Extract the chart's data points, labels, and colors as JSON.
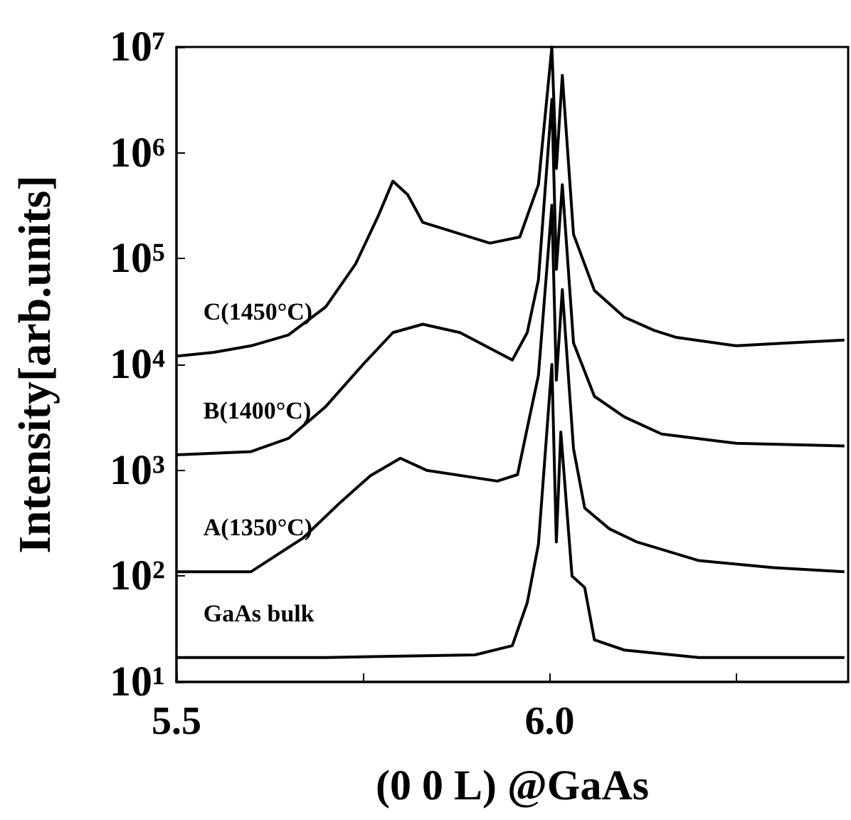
{
  "chart_data": {
    "type": "line",
    "xlabel": "(0 0 L) @GaAs",
    "ylabel": "Intensity[arb.units]",
    "xlim": [
      5.5,
      6.4
    ],
    "xticks": [
      {
        "value": 5.5,
        "label": "5.5"
      },
      {
        "value": 5.75,
        "label": null
      },
      {
        "value": 6,
        "label": "6.0"
      },
      {
        "value": 6.25,
        "label": null
      }
    ],
    "ylim": [
      10,
      10000000
    ],
    "yticks": [
      {
        "value": 10,
        "label": "10¹"
      },
      {
        "value": 100,
        "label": "10²"
      },
      {
        "value": 1000,
        "label": "10³"
      },
      {
        "value": 10000,
        "label": "10⁴"
      },
      {
        "value": 100000,
        "label": "10⁵"
      },
      {
        "value": 1000000,
        "label": "10⁶"
      },
      {
        "value": 10000000,
        "label": "10⁷"
      }
    ],
    "log": "y",
    "grid": false,
    "legend": false,
    "marker": "none",
    "line_style": "solid",
    "series": [
      {
        "name": "C(1450°C)",
        "color": "#000000",
        "x": [
          5.5,
          5.55,
          5.6,
          5.65,
          5.7,
          5.74,
          5.77,
          5.79,
          5.81,
          5.83,
          5.87,
          5.92,
          5.96,
          5.985,
          6.003,
          6.009,
          6.017,
          6.032,
          6.06,
          6.1,
          6.14,
          6.17,
          6.25,
          6.32,
          6.395
        ],
        "values": [
          12000,
          13000,
          15000,
          19000,
          35000,
          89000,
          250000,
          540000,
          400000,
          220000,
          180000,
          140000,
          160000,
          500000,
          10000000,
          710000,
          5400000,
          170000,
          50000,
          28000,
          21000,
          18000,
          15000,
          16000,
          17000
        ]
      },
      {
        "name": "B(1400°C)",
        "color": "#000000",
        "x": [
          5.5,
          5.6,
          5.65,
          5.7,
          5.75,
          5.79,
          5.83,
          5.88,
          5.95,
          5.97,
          5.985,
          6.003,
          6.009,
          6.017,
          6.032,
          6.06,
          6.1,
          6.15,
          6.25,
          6.395
        ],
        "values": [
          1400,
          1500,
          2000,
          4000,
          10000,
          20000,
          24000,
          20000,
          11000,
          20000,
          63000,
          3200000,
          79000,
          500000,
          16000,
          5000,
          3200,
          2200,
          1800,
          1700
        ]
      },
      {
        "name": "A(1350°C)",
        "color": "#000000",
        "x": [
          5.5,
          5.6,
          5.67,
          5.72,
          5.76,
          5.8,
          5.835,
          5.93,
          5.957,
          5.97,
          5.985,
          6.003,
          6.009,
          6.017,
          6.032,
          6.047,
          6.08,
          6.117,
          6.2,
          6.3,
          6.395
        ],
        "values": [
          110,
          110,
          230,
          500,
          890,
          1300,
          1000,
          790,
          910,
          2500,
          7900,
          320000,
          7100,
          51000,
          1600,
          440,
          280,
          210,
          140,
          120,
          110
        ]
      },
      {
        "name": "GaAs bulk",
        "color": "#000000",
        "x": [
          5.5,
          5.7,
          5.9,
          5.95,
          5.97,
          5.985,
          6.003,
          6.009,
          6.015,
          6.03,
          6.047,
          6.06,
          6.1,
          6.2,
          6.395
        ],
        "values": [
          17,
          17,
          18,
          22,
          56,
          200,
          10000,
          210,
          2300,
          100,
          78,
          25,
          20,
          17,
          17
        ]
      }
    ]
  }
}
